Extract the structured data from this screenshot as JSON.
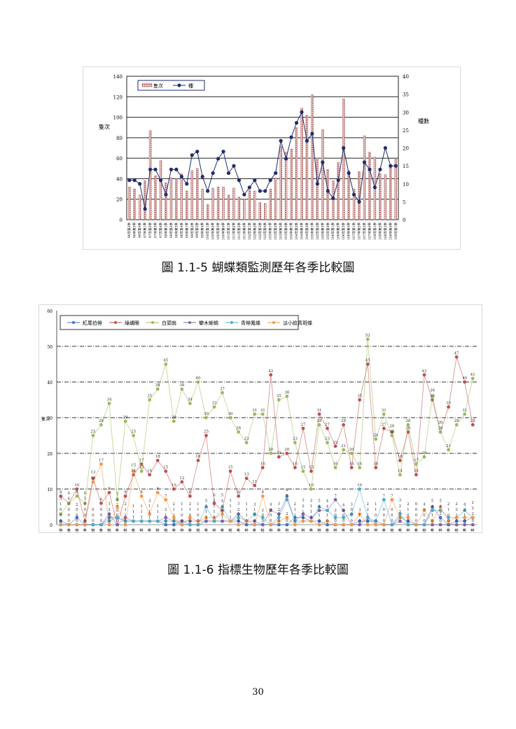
{
  "chart_data": [
    {
      "type": "bar+line",
      "legend": [
        "隻次",
        "種"
      ],
      "ylabel_left": "隻次",
      "ylabel_right": "種數",
      "ylim_left": [
        0,
        140
      ],
      "ylim_right": [
        0,
        40
      ],
      "yticks_left": [
        0,
        20,
        40,
        60,
        80,
        100,
        120,
        140
      ],
      "yticks_right": [
        0,
        5,
        10,
        15,
        20,
        25,
        30,
        35,
        40
      ],
      "grid": true,
      "legend_position": "top-left",
      "bar_color": "#a0524f",
      "line_color": "#1f2d6b",
      "categories": [
        "96年第2季",
        "96年第3季",
        "96年第4季",
        "97年第1季",
        "97年第2季",
        "97年第3季",
        "97年第4季",
        "98年第1季",
        "98年第2季",
        "98年第3季",
        "98年第4季",
        "99年第1季",
        "99年第2季",
        "99年第3季",
        "99年第4季",
        "100年第1季",
        "100年第2季",
        "100年第3季",
        "100年第4季",
        "101年第1季",
        "101年第2季",
        "101年第3季",
        "101年第4季",
        "102年第1季",
        "102年第2季",
        "102年第3季",
        "102年第4季",
        "103年第1季",
        "103年第2季",
        "103年第3季",
        "103年第4季",
        "104年第1季",
        "104年第2季",
        "104年第3季",
        "104年第4季",
        "105年第1季",
        "105年第2季",
        "105年第3季",
        "105年第4季",
        "106年第1季",
        "106年第2季",
        "106年第3季",
        "106年第4季",
        "107年第1季",
        "107年第2季",
        "107年第3季",
        "107年第4季",
        "108年第1季",
        "108年第2季",
        "108年第3季",
        "108年第4季",
        "109年第1季"
      ],
      "series": [
        {
          "name": "隻次",
          "axis": "left",
          "values": [
            32,
            30,
            24,
            38,
            87,
            43,
            58,
            36,
            41,
            40,
            45,
            28,
            48,
            50,
            30,
            15,
            31,
            32,
            32,
            24,
            31,
            22,
            20,
            29,
            28,
            17,
            16,
            30,
            41,
            72,
            66,
            69,
            90,
            109,
            102,
            122,
            60,
            88,
            49,
            38,
            56,
            118,
            48,
            30,
            47,
            82,
            66,
            61,
            45,
            44,
            52,
            59
          ]
        },
        {
          "name": "種",
          "axis": "right",
          "values": [
            11,
            11,
            10,
            3,
            14,
            14,
            11,
            7,
            14,
            14,
            12,
            10,
            18,
            19,
            12,
            8,
            13,
            17,
            19,
            13,
            15,
            11,
            7,
            9,
            11,
            8,
            8,
            11,
            13,
            22,
            17,
            23,
            27,
            30,
            22,
            24,
            10,
            16,
            8,
            6,
            11,
            20,
            13,
            7,
            5,
            16,
            14,
            9,
            14,
            20,
            15,
            15
          ]
        }
      ]
    },
    {
      "type": "line",
      "ylabel": "隻次",
      "ylim": [
        0,
        60
      ],
      "yticks": [
        0,
        10,
        20,
        30,
        40,
        50,
        60
      ],
      "grid": true,
      "legend_position": "top",
      "categories": [
        "96年第2季",
        "96年第3季",
        "96年第4季",
        "97年第1季",
        "97年第2季",
        "97年第3季",
        "97年第4季",
        "98年第1季",
        "98年第2季",
        "98年第3季",
        "98年第4季",
        "99年第1季",
        "99年第2季",
        "99年第3季",
        "99年第4季",
        "100年第1季",
        "100年第2季",
        "100年第3季",
        "100年第4季",
        "101年第1季",
        "101年第2季",
        "101年第3季",
        "101年第4季",
        "102年第1季",
        "102年第2季",
        "102年第3季",
        "102年第4季",
        "103年第1季",
        "103年第2季",
        "103年第3季",
        "103年第4季",
        "104年第1季",
        "104年第2季",
        "104年第3季",
        "104年第4季",
        "105年第1季",
        "105年第2季",
        "105年第3季",
        "105年第4季",
        "106年第1季",
        "106年第2季",
        "106年第3季",
        "106年第4季",
        "107年第1季",
        "107年第2季",
        "107年第3季",
        "107年第4季",
        "108年第1季",
        "108年第2季",
        "108年第3季",
        "108年第4季",
        "109年第1季"
      ],
      "series": [
        {
          "name": "紅尾伯勞",
          "color": "#4472c4",
          "values": [
            1,
            0,
            2,
            0,
            0,
            0,
            2,
            2,
            1,
            1,
            1,
            1,
            1,
            0,
            0,
            1,
            0,
            0,
            1,
            1,
            1,
            1,
            1,
            0,
            0,
            0,
            0,
            0,
            0,
            2,
            2,
            1,
            1,
            0,
            0,
            0,
            0,
            1,
            1,
            1,
            0,
            0,
            2,
            1,
            0,
            0,
            5,
            2,
            0,
            1,
            1,
            2
          ]
        },
        {
          "name": "綠繡眼",
          "color": "#c0504d",
          "values": [
            8,
            6,
            10,
            1,
            13,
            6,
            9,
            0,
            8,
            14,
            17,
            14,
            18,
            15,
            10,
            12,
            8,
            18,
            25,
            6,
            4,
            15,
            8,
            13,
            11,
            16,
            42,
            19,
            20,
            16,
            27,
            15,
            31,
            27,
            22,
            28,
            16,
            35,
            45,
            16,
            27,
            26,
            18,
            26,
            14,
            42,
            35,
            26,
            33,
            47,
            40,
            28
          ]
        },
        {
          "name": "白頭翁",
          "color": "#9bbb59",
          "values": [
            3,
            6,
            8,
            6,
            25,
            28,
            34,
            7,
            29,
            25,
            15,
            35,
            38,
            45,
            29,
            38,
            34,
            40,
            30,
            33,
            37,
            30,
            26,
            23,
            31,
            31,
            20,
            35,
            36,
            23,
            15,
            10,
            28,
            23,
            16,
            21,
            20,
            16,
            52,
            24,
            31,
            25,
            14,
            28,
            17,
            19,
            36,
            26,
            21,
            28,
            31,
            41
          ]
        },
        {
          "name": "攀木蜥蜴",
          "color": "#8064a2",
          "values": [
            0,
            0,
            0,
            0,
            0,
            0,
            3,
            0,
            2,
            1,
            1,
            1,
            1,
            2,
            1,
            1,
            1,
            1,
            1,
            1,
            1,
            1,
            3,
            1,
            1,
            0,
            4,
            3,
            8,
            1,
            3,
            2,
            4,
            4,
            7,
            4,
            0,
            0,
            2,
            0,
            0,
            0,
            1,
            0,
            0,
            0,
            0,
            0,
            0,
            0,
            0,
            0
          ]
        },
        {
          "name": "青帶鳳蝶",
          "color": "#4bacc6",
          "values": [
            0,
            0,
            0,
            0,
            0,
            0,
            1,
            2,
            1,
            1,
            1,
            1,
            1,
            1,
            1,
            0,
            0,
            0,
            5,
            1,
            5,
            1,
            2,
            1,
            3,
            2,
            0,
            2,
            7,
            1,
            1,
            1,
            5,
            4,
            2,
            2,
            3,
            10,
            2,
            1,
            7,
            0,
            3,
            0,
            0,
            0,
            4,
            4,
            2,
            2,
            4,
            2
          ]
        },
        {
          "name": "淡小紋青斑蝶",
          "color": "#f79646",
          "values": [
            0,
            0,
            0,
            0,
            12,
            17,
            0,
            5,
            0,
            15,
            8,
            3,
            9,
            7,
            2,
            0,
            2,
            1,
            2,
            2,
            3,
            1,
            0,
            1,
            0,
            8,
            0,
            1,
            2,
            0,
            1,
            1,
            0,
            1,
            0,
            0,
            0,
            3,
            0,
            0,
            0,
            7,
            2,
            2,
            0,
            4,
            1,
            5,
            1,
            2,
            2,
            2
          ]
        }
      ]
    }
  ],
  "captions": {
    "fig1": "圖 1.1-5 蝴蝶類監測歷年各季比較圖",
    "fig2": "圖 1.1-6 指標生物歷年各季比較圖"
  },
  "page_number": "30"
}
